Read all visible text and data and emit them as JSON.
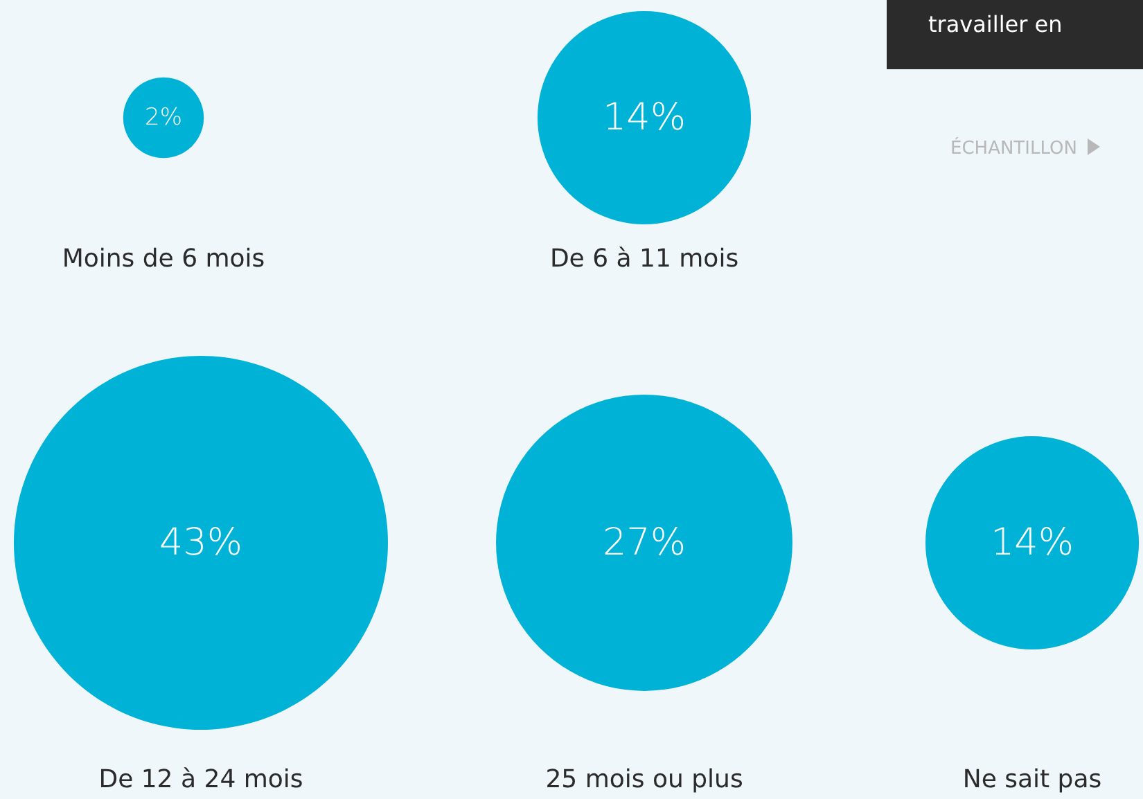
{
  "chart_data": {
    "type": "other",
    "categories": [
      "Moins de 6 mois",
      "De 6 à 11 mois",
      "De 12 à 24 mois",
      "25 mois ou plus",
      "Ne sait pas"
    ],
    "values": [
      2,
      14,
      43,
      27,
      14
    ],
    "value_labels": [
      "2%",
      "14%",
      "43%",
      "27%",
      "14%"
    ],
    "color": "#00b2d6",
    "annotations": [
      "travailler en",
      "ÉCHANTILLON"
    ]
  }
}
